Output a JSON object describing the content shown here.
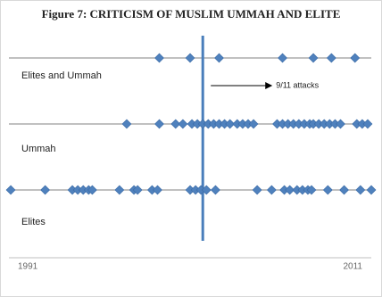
{
  "chart_data": {
    "type": "timeline",
    "title": "Figure 7: CRITICISM OF MUSLIM UMMAH AND ELITE",
    "xlim": [
      1991,
      2011
    ],
    "xticks": [
      1991,
      2011
    ],
    "event": {
      "x": 2001.7,
      "label": "9/11 attacks",
      "color": "#4a7ebb"
    },
    "series": [
      {
        "name": "Elites and Ummah",
        "color": "#4f81bd",
        "x": [
          1999.3,
          2001.0,
          2002.6,
          2006.1,
          2007.8,
          2008.8,
          2010.1
        ]
      },
      {
        "name": "Ummah",
        "color": "#4f81bd",
        "x": [
          1997.5,
          1999.3,
          2000.2,
          2000.6,
          2001.1,
          2001.4,
          2001.7,
          2002.0,
          2002.3,
          2002.6,
          2002.9,
          2003.2,
          2003.6,
          2003.9,
          2004.2,
          2004.5,
          2005.8,
          2006.1,
          2006.4,
          2006.7,
          2007.0,
          2007.3,
          2007.6,
          2007.8,
          2008.1,
          2008.4,
          2008.7,
          2009.0,
          2009.3,
          2010.2,
          2010.5,
          2010.8
        ]
      },
      {
        "name": "Elites",
        "color": "#4f81bd",
        "x": [
          1991.1,
          1993.0,
          1994.5,
          1994.8,
          1995.1,
          1995.4,
          1995.6,
          1997.1,
          1997.9,
          1998.1,
          1998.9,
          1999.2,
          2001.0,
          2001.3,
          2001.6,
          2001.9,
          2002.4,
          2004.7,
          2005.5,
          2006.2,
          2006.5,
          2006.9,
          2007.2,
          2007.5,
          2007.7,
          2008.6,
          2009.5,
          2010.4,
          2011.0
        ]
      }
    ]
  }
}
